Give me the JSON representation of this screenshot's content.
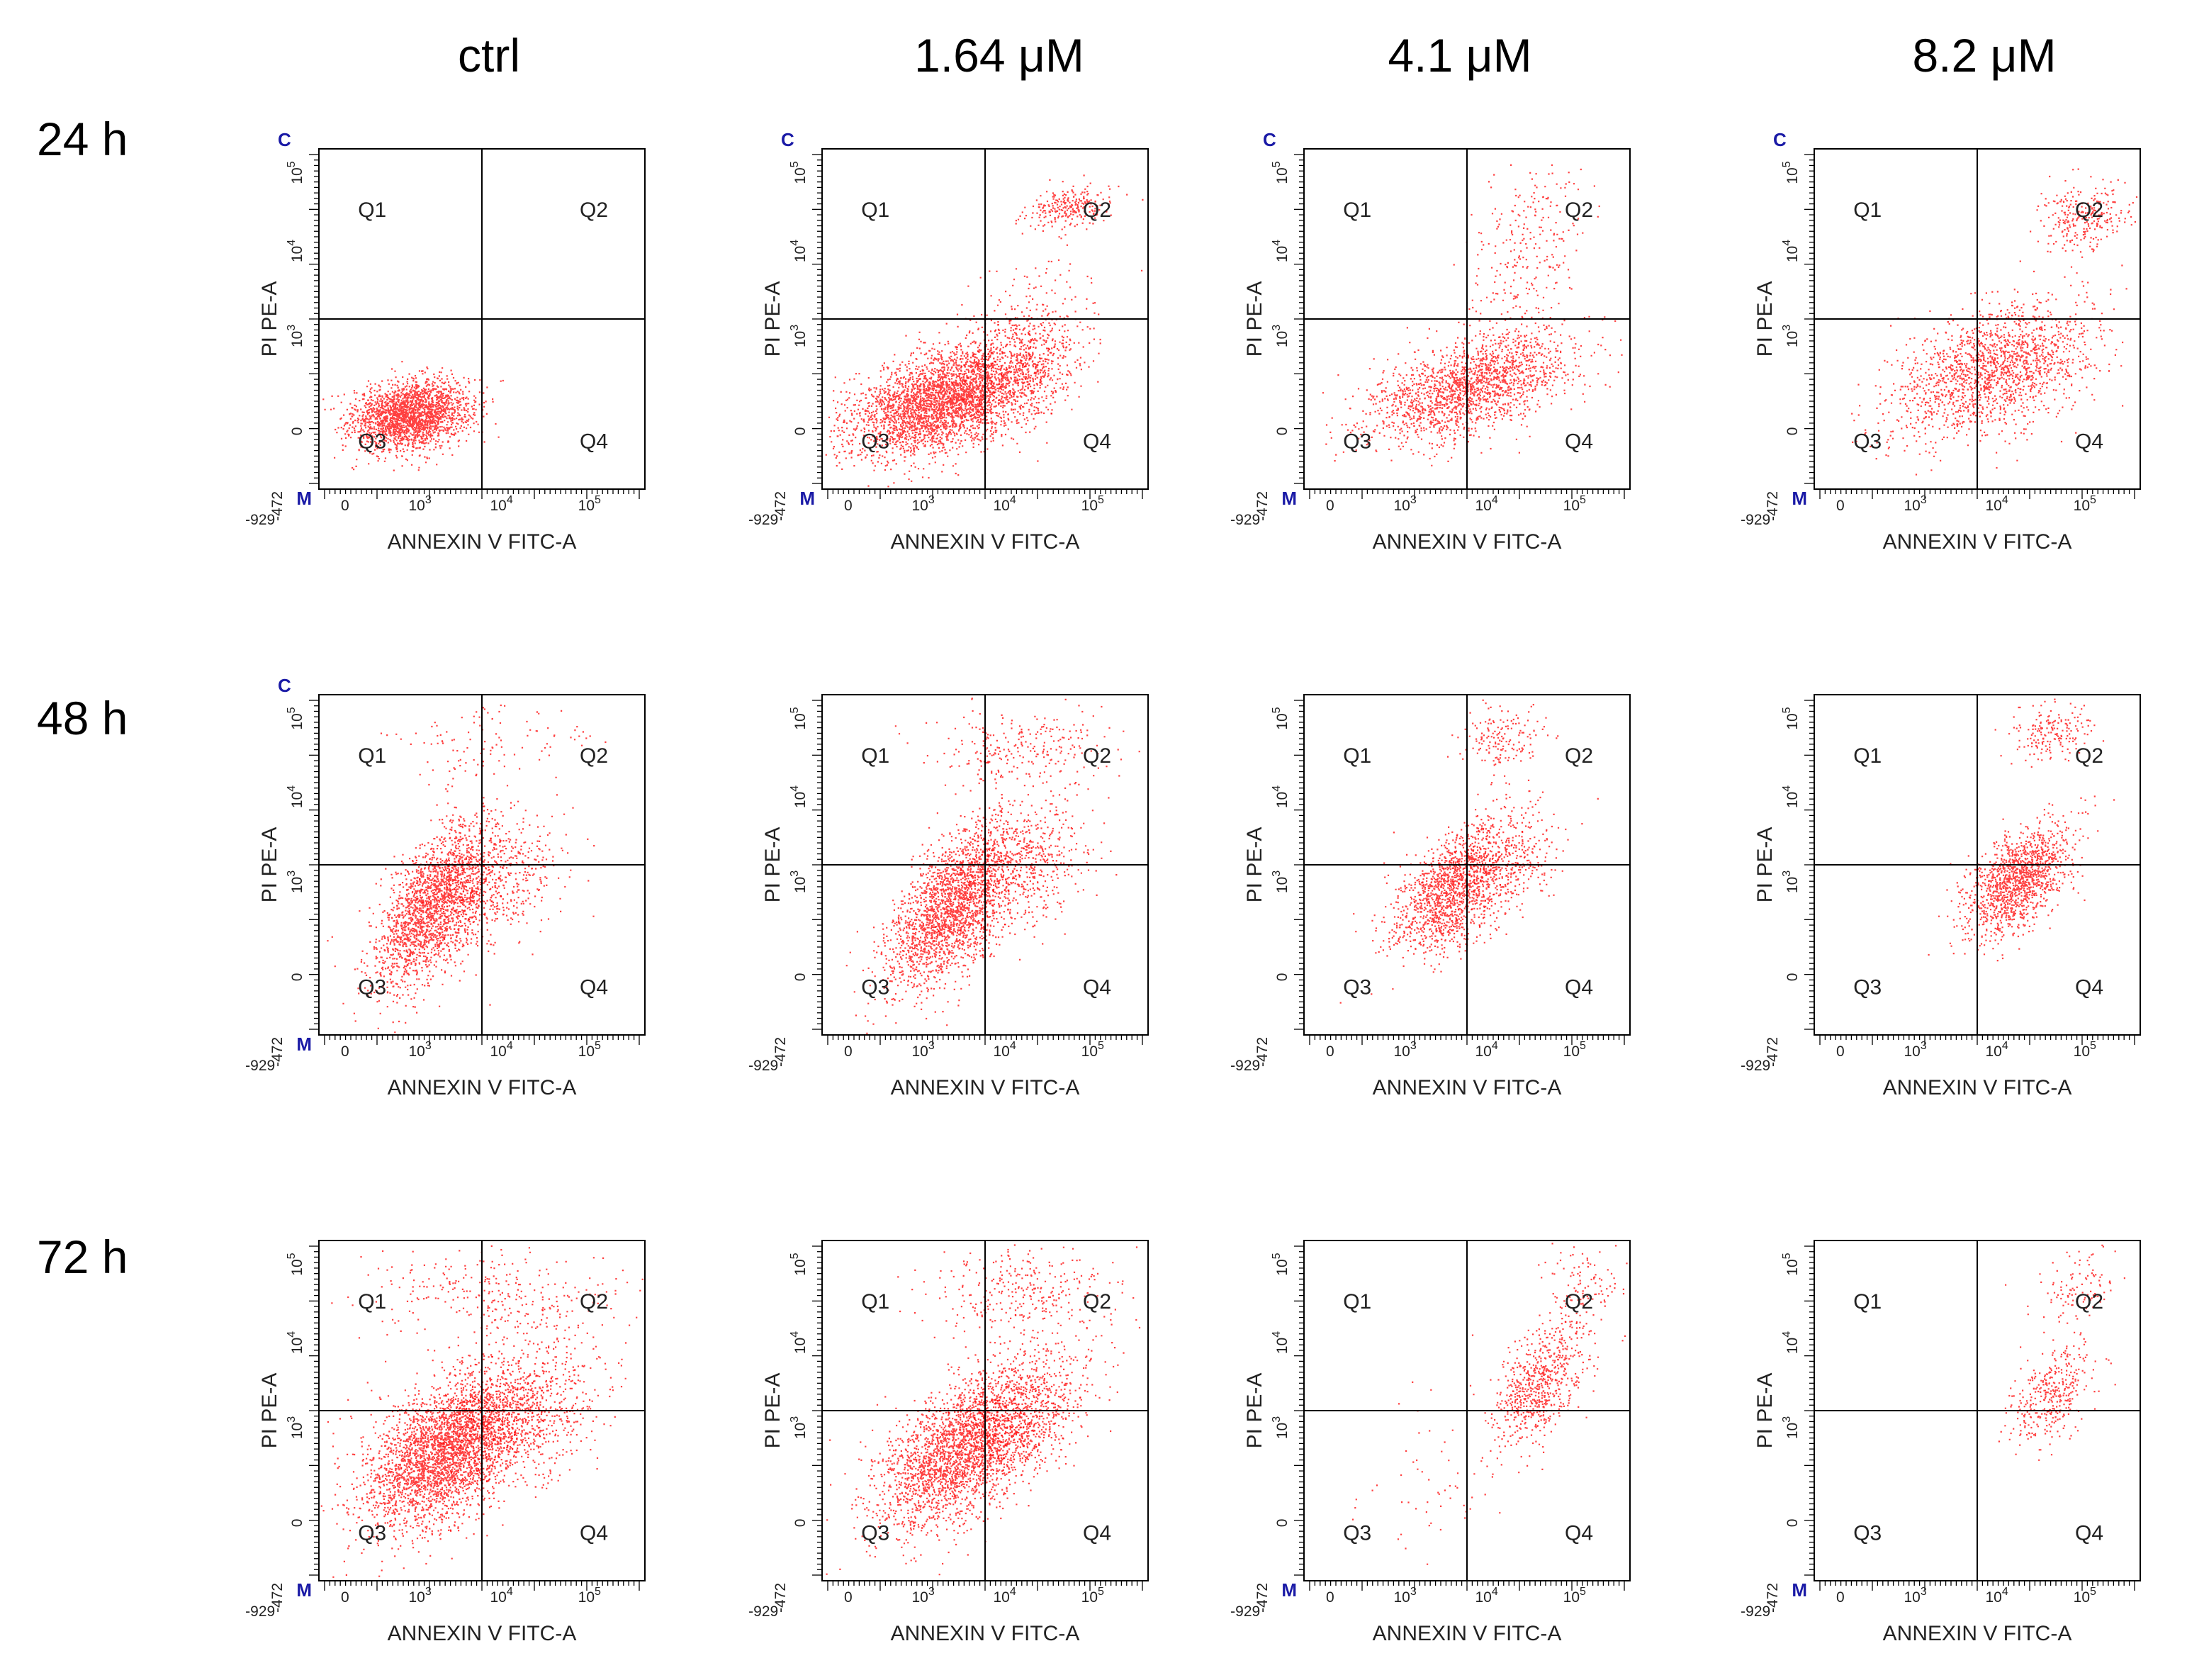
{
  "chart_data": {
    "type": "scatter",
    "description_grid": "3 rows x 4 columns of flow cytometry dot plots",
    "columns": [
      "ctrl",
      "1.64 μM",
      "4.1 μM",
      "8.2 μM"
    ],
    "rows": [
      "24 h",
      "48 h",
      "72 h"
    ],
    "xlabel": "ANNEXIN V FITC-A",
    "ylabel": "PI PE-A",
    "x_tick_labels": [
      "-929",
      "0",
      "10",
      "10",
      "10"
    ],
    "x_tick_exponents": [
      "",
      "",
      "3",
      "4",
      "5"
    ],
    "y_tick_labels": [
      "-472",
      "0",
      "10",
      "10",
      "10"
    ],
    "y_tick_exponents": [
      "",
      "",
      "3",
      "4",
      "5"
    ],
    "quadrant_labels": [
      "Q1",
      "Q2",
      "Q3",
      "Q4"
    ],
    "gate_labels": {
      "top": "C",
      "bottom": "M"
    },
    "point_color": "#ff0000",
    "axis_range": {
      "x": [
        -929,
        100000
      ],
      "y": [
        -472,
        100000
      ]
    },
    "panels": [
      {
        "row": "24 h",
        "col": "ctrl",
        "gate_top": true,
        "gate_bottom": true,
        "clusters": [
          {
            "cx": 0.28,
            "cy": 0.22,
            "sx": 0.09,
            "sy": 0.05,
            "n": 2200,
            "corr": 0.2
          }
        ]
      },
      {
        "row": "24 h",
        "col": "1.64 μM",
        "gate_top": true,
        "gate_bottom": true,
        "clusters": [
          {
            "cx": 0.38,
            "cy": 0.26,
            "sx": 0.15,
            "sy": 0.08,
            "n": 3400,
            "corr": 0.45
          },
          {
            "cx": 0.62,
            "cy": 0.42,
            "sx": 0.1,
            "sy": 0.1,
            "n": 500,
            "corr": 0.3
          },
          {
            "cx": 0.76,
            "cy": 0.83,
            "sx": 0.07,
            "sy": 0.03,
            "n": 260,
            "corr": 0.3
          }
        ]
      },
      {
        "row": "24 h",
        "col": "4.1 μM",
        "gate_top": true,
        "gate_bottom": true,
        "clusters": [
          {
            "cx": 0.5,
            "cy": 0.3,
            "sx": 0.16,
            "sy": 0.08,
            "n": 1800,
            "corr": 0.5
          },
          {
            "cx": 0.68,
            "cy": 0.7,
            "sx": 0.09,
            "sy": 0.14,
            "n": 260,
            "corr": 0.3
          }
        ]
      },
      {
        "row": "24 h",
        "col": "8.2 μM",
        "gate_top": true,
        "gate_bottom": true,
        "clusters": [
          {
            "cx": 0.55,
            "cy": 0.35,
            "sx": 0.16,
            "sy": 0.1,
            "n": 1700,
            "corr": 0.45
          },
          {
            "cx": 0.82,
            "cy": 0.8,
            "sx": 0.07,
            "sy": 0.05,
            "n": 280,
            "corr": 0.2
          }
        ]
      },
      {
        "row": "48 h",
        "col": "ctrl",
        "gate_top": true,
        "gate_bottom": true,
        "clusters": [
          {
            "cx": 0.35,
            "cy": 0.38,
            "sx": 0.09,
            "sy": 0.12,
            "n": 2100,
            "corr": 0.6
          },
          {
            "cx": 0.55,
            "cy": 0.45,
            "sx": 0.1,
            "sy": 0.09,
            "n": 450,
            "corr": 0.4
          },
          {
            "cx": 0.5,
            "cy": 0.85,
            "sx": 0.15,
            "sy": 0.08,
            "n": 120,
            "corr": 0.0
          }
        ]
      },
      {
        "row": "48 h",
        "col": "1.64 μM",
        "gate_top": false,
        "gate_bottom": false,
        "clusters": [
          {
            "cx": 0.4,
            "cy": 0.38,
            "sx": 0.1,
            "sy": 0.12,
            "n": 2200,
            "corr": 0.6
          },
          {
            "cx": 0.62,
            "cy": 0.5,
            "sx": 0.1,
            "sy": 0.1,
            "n": 500,
            "corr": 0.4
          },
          {
            "cx": 0.6,
            "cy": 0.85,
            "sx": 0.14,
            "sy": 0.06,
            "n": 260,
            "corr": 0.1
          }
        ]
      },
      {
        "row": "48 h",
        "col": "4.1 μM",
        "gate_top": false,
        "gate_bottom": false,
        "clusters": [
          {
            "cx": 0.45,
            "cy": 0.42,
            "sx": 0.09,
            "sy": 0.09,
            "n": 1300,
            "corr": 0.5
          },
          {
            "cx": 0.6,
            "cy": 0.52,
            "sx": 0.09,
            "sy": 0.09,
            "n": 400,
            "corr": 0.3
          },
          {
            "cx": 0.6,
            "cy": 0.87,
            "sx": 0.07,
            "sy": 0.05,
            "n": 160,
            "corr": 0.1
          }
        ]
      },
      {
        "row": "48 h",
        "col": "8.2 μM",
        "gate_top": false,
        "gate_bottom": false,
        "clusters": [
          {
            "cx": 0.62,
            "cy": 0.45,
            "sx": 0.08,
            "sy": 0.08,
            "n": 1300,
            "corr": 0.55
          },
          {
            "cx": 0.72,
            "cy": 0.88,
            "sx": 0.06,
            "sy": 0.04,
            "n": 180,
            "corr": 0.2
          }
        ]
      },
      {
        "row": "72 h",
        "col": "ctrl",
        "gate_top": false,
        "gate_bottom": true,
        "clusters": [
          {
            "cx": 0.38,
            "cy": 0.38,
            "sx": 0.12,
            "sy": 0.11,
            "n": 3000,
            "corr": 0.5
          },
          {
            "cx": 0.62,
            "cy": 0.5,
            "sx": 0.12,
            "sy": 0.11,
            "n": 900,
            "corr": 0.3
          },
          {
            "cx": 0.55,
            "cy": 0.84,
            "sx": 0.22,
            "sy": 0.07,
            "n": 300,
            "corr": 0.0
          }
        ]
      },
      {
        "row": "72 h",
        "col": "1.64 μM",
        "gate_top": false,
        "gate_bottom": false,
        "clusters": [
          {
            "cx": 0.42,
            "cy": 0.38,
            "sx": 0.12,
            "sy": 0.11,
            "n": 2400,
            "corr": 0.5
          },
          {
            "cx": 0.62,
            "cy": 0.5,
            "sx": 0.1,
            "sy": 0.1,
            "n": 700,
            "corr": 0.4
          },
          {
            "cx": 0.62,
            "cy": 0.85,
            "sx": 0.16,
            "sy": 0.07,
            "n": 320,
            "corr": 0.0
          }
        ]
      },
      {
        "row": "72 h",
        "col": "4.1 μM",
        "gate_top": false,
        "gate_bottom": true,
        "clusters": [
          {
            "cx": 0.72,
            "cy": 0.58,
            "sx": 0.07,
            "sy": 0.09,
            "n": 650,
            "corr": 0.5
          },
          {
            "cx": 0.85,
            "cy": 0.86,
            "sx": 0.06,
            "sy": 0.07,
            "n": 120,
            "corr": 0.2
          },
          {
            "cx": 0.4,
            "cy": 0.3,
            "sx": 0.12,
            "sy": 0.12,
            "n": 60,
            "corr": 0.3
          }
        ]
      },
      {
        "row": "72 h",
        "col": "8.2 μM",
        "gate_top": false,
        "gate_bottom": true,
        "clusters": [
          {
            "cx": 0.72,
            "cy": 0.55,
            "sx": 0.06,
            "sy": 0.07,
            "n": 350,
            "corr": 0.5
          },
          {
            "cx": 0.8,
            "cy": 0.87,
            "sx": 0.06,
            "sy": 0.07,
            "n": 110,
            "corr": 0.2
          }
        ]
      }
    ]
  }
}
